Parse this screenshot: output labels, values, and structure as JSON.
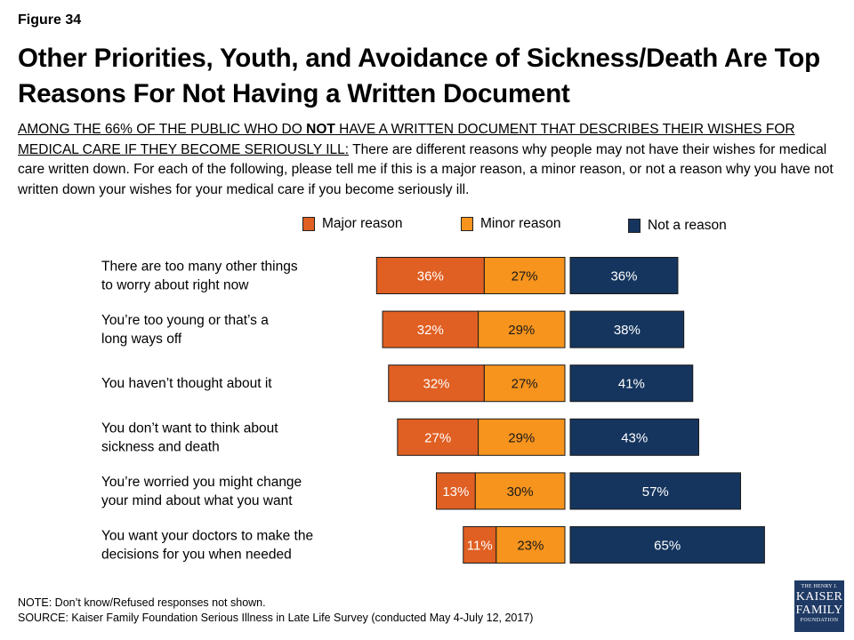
{
  "figure_label": "Figure 34",
  "title": "Other Priorities, Youth, and Avoidance of Sickness/Death Are Top Reasons For Not Having a Written Document",
  "subtitle": {
    "underlined_part1": "AMONG THE 66% OF THE PUBLIC WHO DO ",
    "underlined_bold": "NOT",
    "underlined_part2": " HAVE A WRITTEN DOCUMENT THAT DESCRIBES THEIR WISHES FOR MEDICAL CARE IF THEY BECOME SERIOUSLY ILL:",
    "rest": " There are different reasons why people may not have their wishes for medical care written down. For each of the following, please tell me if this is a major reason, a minor reason, or not a reason why you have not written down your wishes for your medical care if you become seriously ill."
  },
  "legend": {
    "major": "Major reason",
    "minor": "Minor reason",
    "not": "Not a reason"
  },
  "colors": {
    "major": "#e05f22",
    "minor": "#f7941d",
    "not": "#15355e",
    "logo": "#1f3a64"
  },
  "chart_data": {
    "type": "bar",
    "orientation": "horizontal",
    "stacked": true,
    "categories": [
      [
        "There are too many other things",
        "to worry about right now"
      ],
      [
        "You’re too young or that’s a",
        "long ways off"
      ],
      [
        "You haven’t thought about it"
      ],
      [
        "You don’t want to think about",
        "sickness and death"
      ],
      [
        "You’re worried you might change",
        "your mind about what you want"
      ],
      [
        "You want your doctors to make the",
        "decisions for you when needed"
      ]
    ],
    "series": [
      {
        "name": "Major reason",
        "key": "major",
        "values": [
          36,
          32,
          32,
          27,
          13,
          11
        ]
      },
      {
        "name": "Minor reason",
        "key": "minor",
        "values": [
          27,
          29,
          27,
          29,
          30,
          23
        ]
      },
      {
        "name": "Not a reason",
        "key": "not",
        "values": [
          36,
          38,
          41,
          43,
          57,
          65
        ]
      }
    ],
    "value_suffix": "%",
    "legend_position": "top",
    "grid": false
  },
  "footer": {
    "note": "NOTE: Don’t know/Refused responses not shown.",
    "source": "SOURCE: Kaiser Family Foundation Serious Illness in Late Life Survey (conducted May 4-July 12, 2017)"
  },
  "logo": {
    "line1": "THE HENRY J.",
    "line2": "KAISER",
    "line3": "FAMILY",
    "line4": "FOUNDATION"
  }
}
